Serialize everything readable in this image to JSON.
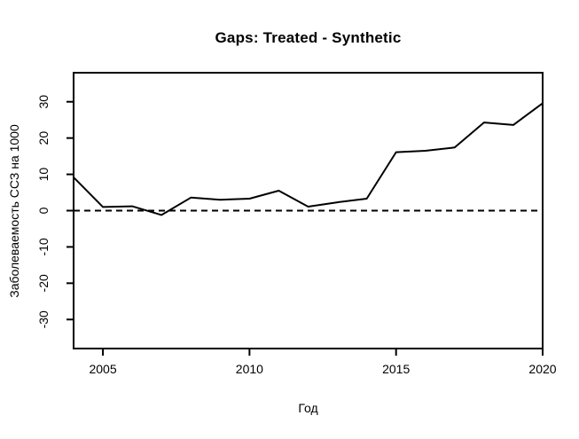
{
  "chart_data": {
    "type": "line",
    "title": "Gaps: Treated - Synthetic",
    "xlabel": "Год",
    "ylabel": "Заболеваемость ССЗ на 1000",
    "x": [
      2004,
      2005,
      2006,
      2007,
      2008,
      2009,
      2010,
      2011,
      2012,
      2013,
      2014,
      2015,
      2016,
      2017,
      2018,
      2019,
      2020
    ],
    "values": [
      9.2,
      1.0,
      1.2,
      -1.2,
      3.6,
      3.0,
      3.3,
      5.5,
      1.1,
      2.3,
      3.3,
      16.1,
      16.5,
      17.4,
      24.3,
      23.6,
      29.6
    ],
    "xlim": [
      2004,
      2020
    ],
    "ylim": [
      -38,
      38
    ],
    "x_ticks": [
      2005,
      2010,
      2015,
      2020
    ],
    "y_ticks": [
      30,
      20,
      10,
      0,
      -10,
      -20,
      -30
    ],
    "reference_line": {
      "y": 0,
      "style": "dashed"
    },
    "grid": false,
    "legend": false,
    "line_color": "#000000",
    "axis_color": "#000000",
    "background": "#ffffff"
  }
}
